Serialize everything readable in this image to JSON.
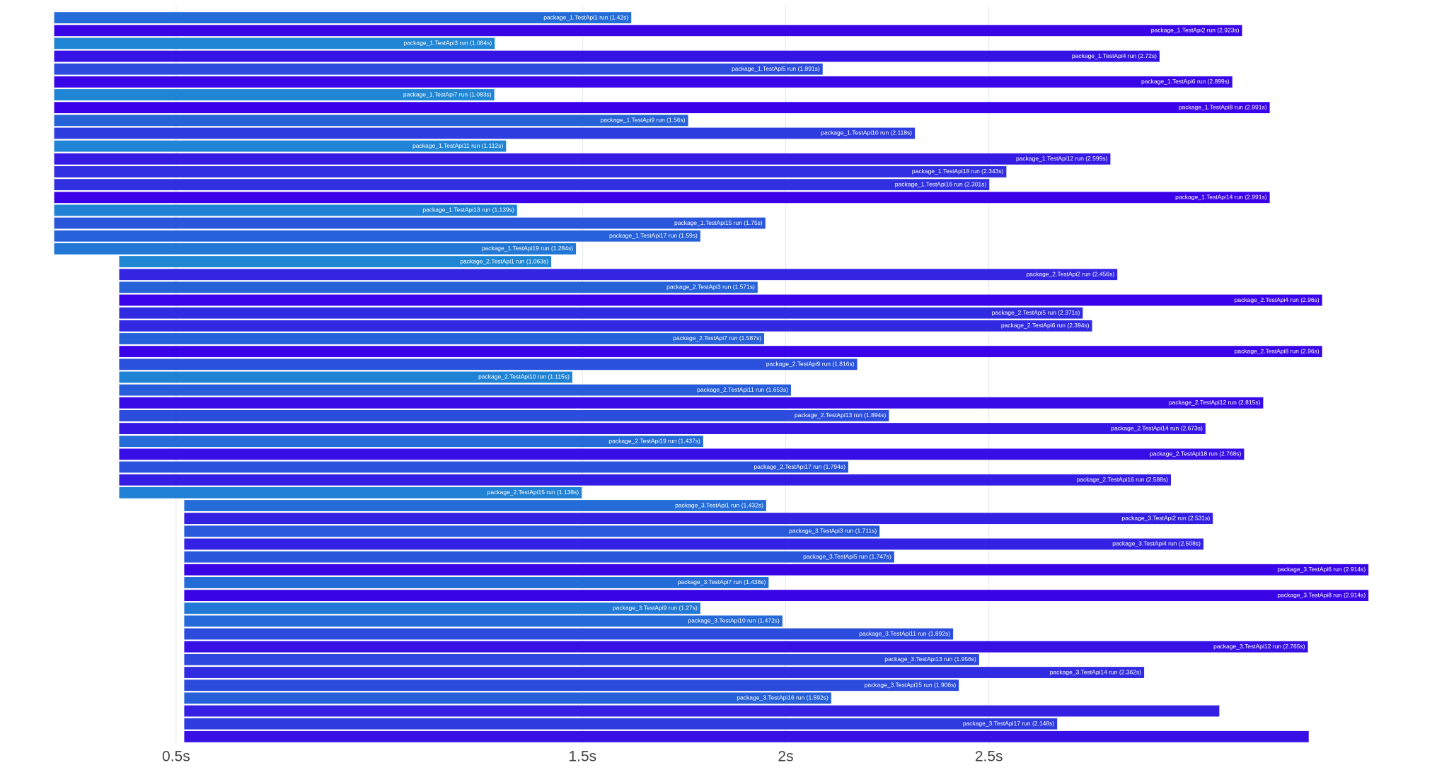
{
  "chart_data": {
    "type": "timeline",
    "xlim": [
      0.2,
      3.6
    ],
    "xticks": [
      {
        "value": 0.5,
        "label": "0.5s"
      },
      {
        "value": 1.5,
        "label": "1.5s"
      },
      {
        "value": 2,
        "label": "2s"
      },
      {
        "value": 2.5,
        "label": "2.5s"
      }
    ],
    "grid": true,
    "colors": [
      "#1f86d4",
      "#3a00e8"
    ],
    "tasks": [
      {
        "label": "package_1.TestApi1 run (1.42s)",
        "start": 0.2,
        "duration": 1.42
      },
      {
        "label": "package_1.TestApi2 run (2.923s)",
        "start": 0.2,
        "duration": 2.923
      },
      {
        "label": "package_1.TestApi3 run (1.084s)",
        "start": 0.2,
        "duration": 1.084
      },
      {
        "label": "package_1.TestApi4 run (2.72s)",
        "start": 0.2,
        "duration": 2.72
      },
      {
        "label": "package_1.TestApi5 run (1.891s)",
        "start": 0.2,
        "duration": 1.891
      },
      {
        "label": "package_1.TestApi6 run (2.899s)",
        "start": 0.2,
        "duration": 2.899
      },
      {
        "label": "package_1.TestApi7 run (1.083s)",
        "start": 0.2,
        "duration": 1.083
      },
      {
        "label": "package_1.TestApi8 run (2.991s)",
        "start": 0.2,
        "duration": 2.991
      },
      {
        "label": "package_1.TestApi9 run (1.56s)",
        "start": 0.2,
        "duration": 1.56
      },
      {
        "label": "package_1.TestApi10 run (2.118s)",
        "start": 0.2,
        "duration": 2.118
      },
      {
        "label": "package_1.TestApi11 run (1.112s)",
        "start": 0.2,
        "duration": 1.112
      },
      {
        "label": "package_1.TestApi12 run (2.599s)",
        "start": 0.2,
        "duration": 2.599
      },
      {
        "label": "package_1.TestApi18 run (2.343s)",
        "start": 0.2,
        "duration": 2.343
      },
      {
        "label": "package_1.TestApi16 run (2.301s)",
        "start": 0.2,
        "duration": 2.301
      },
      {
        "label": "package_1.TestApi14 run (2.991s)",
        "start": 0.2,
        "duration": 2.991
      },
      {
        "label": "package_1.TestApi13 run (1.139s)",
        "start": 0.2,
        "duration": 1.139
      },
      {
        "label": "package_1.TestApi15 run (1.75s)",
        "start": 0.2,
        "duration": 1.75
      },
      {
        "label": "package_1.TestApi17 run (1.59s)",
        "start": 0.2,
        "duration": 1.59
      },
      {
        "label": "package_1.TestApi19 run (1.284s)",
        "start": 0.2,
        "duration": 1.284
      },
      {
        "label": "package_2.TestApi1 run (1.063s)",
        "start": 0.36,
        "duration": 1.063
      },
      {
        "label": "package_2.TestApi2 run (2.456s)",
        "start": 0.36,
        "duration": 2.456
      },
      {
        "label": "package_2.TestApi3 run (1.571s)",
        "start": 0.36,
        "duration": 1.571
      },
      {
        "label": "package_2.TestApi4 run (2.96s)",
        "start": 0.36,
        "duration": 2.96
      },
      {
        "label": "package_2.TestApi5 run (2.371s)",
        "start": 0.36,
        "duration": 2.371
      },
      {
        "label": "package_2.TestApi6 run (2.394s)",
        "start": 0.36,
        "duration": 2.394
      },
      {
        "label": "package_2.TestApi7 run (1.587s)",
        "start": 0.36,
        "duration": 1.587
      },
      {
        "label": "package_2.TestApi8 run (2.96s)",
        "start": 0.36,
        "duration": 2.96
      },
      {
        "label": "package_2.TestApi9 run (1.816s)",
        "start": 0.36,
        "duration": 1.816
      },
      {
        "label": "package_2.TestApi10 run (1.115s)",
        "start": 0.36,
        "duration": 1.115
      },
      {
        "label": "package_2.TestApi11 run (1.653s)",
        "start": 0.36,
        "duration": 1.653
      },
      {
        "label": "package_2.TestApi12 run (2.815s)",
        "start": 0.36,
        "duration": 2.815
      },
      {
        "label": "package_2.TestApi13 run (1.894s)",
        "start": 0.36,
        "duration": 1.894
      },
      {
        "label": "package_2.TestApi14 run (2.673s)",
        "start": 0.36,
        "duration": 2.673
      },
      {
        "label": "package_2.TestApi19 run (1.437s)",
        "start": 0.36,
        "duration": 1.437
      },
      {
        "label": "package_2.TestApi18 run (2.768s)",
        "start": 0.36,
        "duration": 2.768
      },
      {
        "label": "package_2.TestApi17 run (1.794s)",
        "start": 0.36,
        "duration": 1.794
      },
      {
        "label": "package_2.TestApi16 run (2.588s)",
        "start": 0.36,
        "duration": 2.588
      },
      {
        "label": "package_2.TestApi15 run (1.138s)",
        "start": 0.36,
        "duration": 1.138
      },
      {
        "label": "package_3.TestApi1 run (1.432s)",
        "start": 0.52,
        "duration": 1.432
      },
      {
        "label": "package_3.TestApi2 run (2.531s)",
        "start": 0.52,
        "duration": 2.531
      },
      {
        "label": "package_3.TestApi3 run (1.711s)",
        "start": 0.52,
        "duration": 1.711
      },
      {
        "label": "package_3.TestApi4 run (2.508s)",
        "start": 0.52,
        "duration": 2.508
      },
      {
        "label": "package_3.TestApi5 run (1.747s)",
        "start": 0.52,
        "duration": 1.747
      },
      {
        "label": "package_3.TestApi6 run (2.914s)",
        "start": 0.52,
        "duration": 2.914
      },
      {
        "label": "package_3.TestApi7 run (1.438s)",
        "start": 0.52,
        "duration": 1.438
      },
      {
        "label": "package_3.TestApi8 run (2.914s)",
        "start": 0.52,
        "duration": 2.914
      },
      {
        "label": "package_3.TestApi9 run (1.27s)",
        "start": 0.52,
        "duration": 1.27
      },
      {
        "label": "package_3.TestApi10 run (1.472s)",
        "start": 0.52,
        "duration": 1.472
      },
      {
        "label": "package_3.TestApi11 run (1.892s)",
        "start": 0.52,
        "duration": 1.892
      },
      {
        "label": "package_3.TestApi12 run (2.765s)",
        "start": 0.52,
        "duration": 2.765
      },
      {
        "label": "package_3.TestApi13 run (1.956s)",
        "start": 0.52,
        "duration": 1.956
      },
      {
        "label": "package_3.TestApi14 run (2.362s)",
        "start": 0.52,
        "duration": 2.362
      },
      {
        "label": "package_3.TestApi15 run (1.906s)",
        "start": 0.52,
        "duration": 1.906
      },
      {
        "label": "package_3.TestApi16 run (1.592s)",
        "start": 0.52,
        "duration": 1.592
      },
      {
        "label": null,
        "start": 0.52,
        "duration": 2.547
      },
      {
        "label": "package_3.TestApi17 run (2.148s)",
        "start": 0.52,
        "duration": 2.148
      },
      {
        "label": null,
        "start": 0.52,
        "duration": 2.767
      }
    ]
  }
}
